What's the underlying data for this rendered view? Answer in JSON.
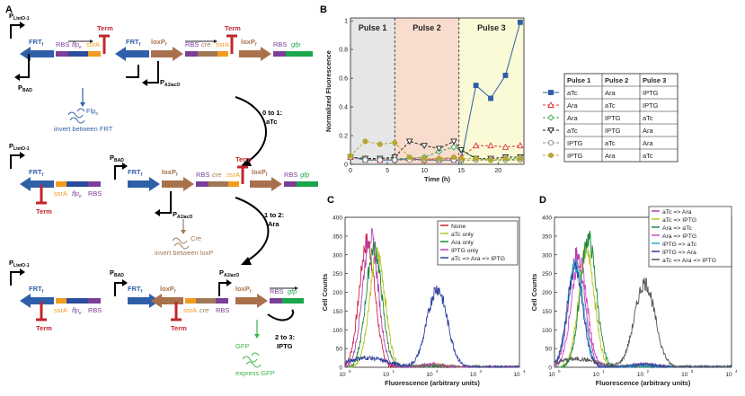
{
  "panels": {
    "a": "A",
    "b": "B",
    "c": "C",
    "d": "D"
  },
  "colors": {
    "blue": "#2f5fa8",
    "red": "#c0272d",
    "purple": "#7b3f98",
    "orange": "#f29c1f",
    "brown": "#a9714b",
    "green": "#1aa64a",
    "dkblue": "#2b4c9c",
    "cre": "#a07856",
    "gfpgreen": "#3bb54a"
  },
  "diagram": {
    "promoter_ptet": "P",
    "ptet_sub": "LtetO-1",
    "pbad": "P",
    "pbad_sub": "BAD",
    "plac": "P",
    "plac_sub": "A1lacO",
    "frt": "FRT",
    "frt_sub": "f",
    "loxp": "loxP",
    "loxp_sub": "f",
    "rbs": "RBS",
    "flpe": "flp",
    "flpe_sub": "e",
    "ssra": "ssrA",
    "term": "Term",
    "cre": "cre",
    "gfp": "gfp",
    "flpe_protein": "Flp",
    "flpe_protein_sub": "e",
    "invert_frt": "invert between FRT",
    "cre_protein": "Cre",
    "invert_loxp": "invert between loxP",
    "gfp_protein": "GFP",
    "express_gfp": "express GFP",
    "step1_a": "0 to 1:",
    "step1_b": "aTc",
    "step2_a": "1 to 2:",
    "step2_b": "Ara",
    "step3_a": "2 to 3:",
    "step3_b": "IPTG"
  },
  "pulse_table": {
    "headers": [
      "Pulse 1",
      "Pulse 2",
      "Pulse 3"
    ],
    "rows": [
      [
        "aTc",
        "Ara",
        "IPTG"
      ],
      [
        "Ara",
        "aTc",
        "IPTG"
      ],
      [
        "Ara",
        "IPTG",
        "aTc"
      ],
      [
        "aTc",
        "IPTG",
        "Ara"
      ],
      [
        "IPTG",
        "aTc",
        "Ara"
      ],
      [
        "IPTG",
        "Ara",
        "aTc"
      ]
    ],
    "marker_colors": [
      "#2f5fa8",
      "#e0312e",
      "#2fa84f",
      "#222222",
      "#888888",
      "#b5a632"
    ]
  },
  "chart_data": [
    {
      "type": "line",
      "ylabel": "Normalized Fluorescence",
      "xlabel": "Time (h)",
      "xlim": [
        0,
        23.5
      ],
      "ylim": [
        0,
        1.02
      ],
      "xticks": [
        0,
        5,
        10,
        15,
        20
      ],
      "yticks": [
        0,
        0.2,
        0.4,
        0.6,
        0.8,
        1
      ],
      "region_labels": [
        "Pulse 1",
        "Pulse 2",
        "Pulse 3"
      ],
      "regions": [
        [
          0,
          6,
          "#e6e6e6"
        ],
        [
          6,
          14.7,
          "#f8dccd"
        ],
        [
          14.7,
          23.5,
          "#fafad6"
        ]
      ],
      "boundaries": [
        6,
        14.7
      ],
      "series": [
        {
          "color": "#2f5fa8",
          "dash": "",
          "x": [
            0,
            2,
            4,
            6,
            8,
            10,
            12,
            14,
            15,
            17,
            19,
            21,
            23
          ],
          "y": [
            0.05,
            0.03,
            0.03,
            0.03,
            0.04,
            0.03,
            0.03,
            0.03,
            0.03,
            0.55,
            0.46,
            0.62,
            0.99
          ]
        },
        {
          "color": "#e0312e",
          "dash": "3,2",
          "x": [
            0,
            2,
            4,
            6,
            8,
            10,
            12,
            14,
            15,
            17,
            19,
            21,
            23
          ],
          "y": [
            0.05,
            0.04,
            0.03,
            0.04,
            0.04,
            0.03,
            0.04,
            0.04,
            0.05,
            0.13,
            0.13,
            0.12,
            0.13
          ]
        },
        {
          "color": "#2fa84f",
          "dash": "3,2",
          "x": [
            0,
            2,
            4,
            6,
            8,
            10,
            12,
            14,
            15,
            17,
            19,
            21,
            23
          ],
          "y": [
            0.05,
            0.04,
            0.04,
            0.04,
            0.04,
            0.05,
            0.09,
            0.12,
            0.1,
            0.04,
            0.03,
            0.03,
            0.04
          ]
        },
        {
          "color": "#222222",
          "dash": "3,2",
          "x": [
            0,
            2,
            4,
            6,
            8,
            10,
            12,
            14,
            15,
            17,
            19,
            21,
            23
          ],
          "y": [
            0.05,
            0.04,
            0.04,
            0.05,
            0.16,
            0.13,
            0.11,
            0.16,
            0.1,
            0.04,
            0.04,
            0.05,
            0.05
          ]
        },
        {
          "color": "#888888",
          "dash": "3,2",
          "x": [
            0,
            2,
            4,
            6,
            8,
            10,
            12,
            14,
            15,
            17,
            19,
            21,
            23
          ],
          "y": [
            0.05,
            0.03,
            0.03,
            0.03,
            0.03,
            0.03,
            0.03,
            0.03,
            0.03,
            0.03,
            0.03,
            0.03,
            0.03
          ]
        },
        {
          "color": "#b5a632",
          "dash": "3,2",
          "x": [
            0,
            2,
            4,
            6,
            8,
            10,
            12,
            14,
            15,
            17,
            19,
            21,
            23
          ],
          "y": [
            0.06,
            0.16,
            0.14,
            0.15,
            0.05,
            0.04,
            0.04,
            0.05,
            0.04,
            0.04,
            0.03,
            0.04,
            0.04
          ]
        }
      ]
    },
    {
      "type": "area",
      "ylabel": "Cell Counts",
      "xlabel": "Fluorescence (arbitrary units)",
      "xscale": "log",
      "xlim": [
        1,
        10000
      ],
      "ylim": [
        0,
        400
      ],
      "xticks": [
        1,
        10,
        100,
        1000,
        10000
      ],
      "xtick_labels": [
        "10",
        "10",
        "10",
        "10",
        "10"
      ],
      "xtick_exps": [
        "0",
        "1",
        "2",
        "3",
        "4"
      ],
      "yticks": [
        0,
        50,
        100,
        150,
        200,
        250,
        300,
        350,
        400
      ],
      "legend": "top-right",
      "series": [
        {
          "name": "None",
          "color": "#d21f3c",
          "peak": 3.2,
          "height": 335
        },
        {
          "name": "aTc only",
          "color": "#b8c21c",
          "peak": 5.5,
          "height": 300
        },
        {
          "name": "Ara only",
          "color": "#1a8a3a",
          "peak": 4.6,
          "height": 320
        },
        {
          "name": "IPTG only",
          "color": "#b43fb4",
          "peak": 3.8,
          "height": 350
        },
        {
          "name": "aTc => Ara => IPTG",
          "color": "#2e3f9e",
          "peak": 130,
          "height": 210,
          "low": 25
        }
      ]
    },
    {
      "type": "area",
      "ylabel": "Cell Counts",
      "xlabel": "Fluorescence (arbitrary units)",
      "xscale": "log",
      "xlim": [
        1,
        10000
      ],
      "ylim": [
        0,
        400
      ],
      "xticks": [
        1,
        10,
        100,
        1000,
        10000
      ],
      "xtick_labels": [
        "10",
        "10",
        "10",
        "10",
        "10"
      ],
      "xtick_exps": [
        "0",
        "1",
        "2",
        "3",
        "4"
      ],
      "yticks": [
        0,
        50,
        100,
        150,
        200,
        250,
        300,
        350,
        400
      ],
      "legend": "top-right",
      "series": [
        {
          "name": "aTc => Ara",
          "color": "#b43fb4",
          "peak": 3.2,
          "height": 300
        },
        {
          "name": "aTc => IPTG",
          "color": "#b8c21c",
          "peak": 5.3,
          "height": 310
        },
        {
          "name": "Ara => aTc",
          "color": "#1a8a3a",
          "peak": 5.8,
          "height": 345
        },
        {
          "name": "Ara => IPTG",
          "color": "#d04ac0",
          "peak": 3.6,
          "height": 285
        },
        {
          "name": "IPTG => aTc",
          "color": "#1fb0c8",
          "peak": 3.0,
          "height": 275
        },
        {
          "name": "IPTG => Ara",
          "color": "#2e3f9e",
          "peak": 2.9,
          "height": 260
        },
        {
          "name": "aTc => Ara => IPTG",
          "color": "#555555",
          "peak": 110,
          "height": 225,
          "low": 22
        }
      ]
    }
  ]
}
